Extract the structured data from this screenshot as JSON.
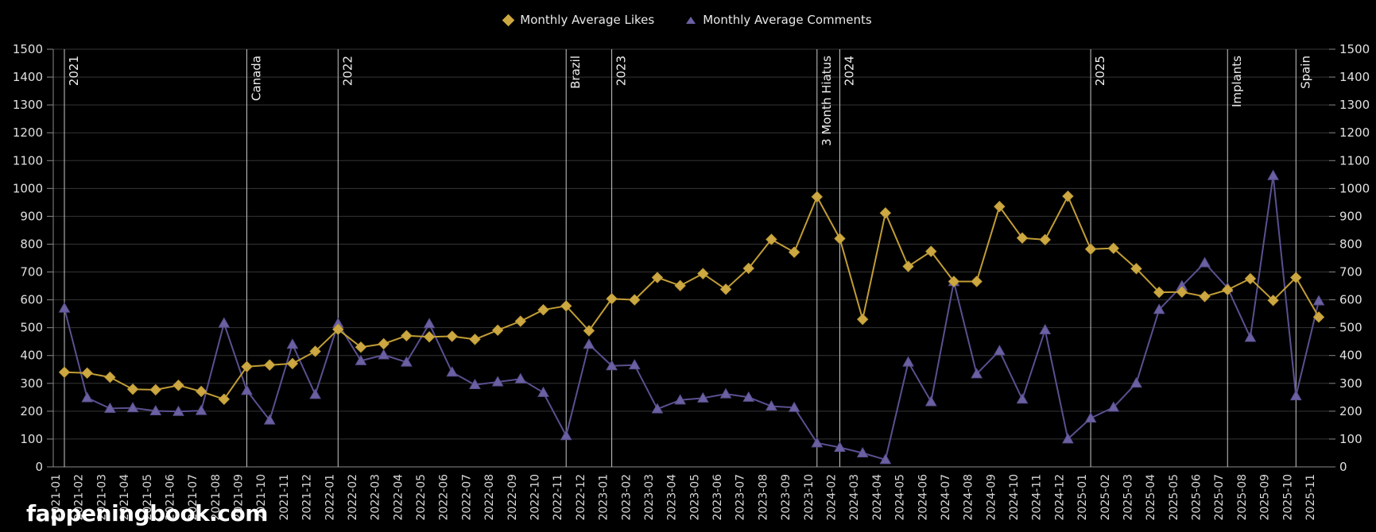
{
  "watermark": "fappeningbook.com",
  "colors": {
    "background": "#000000",
    "grid": "#343434",
    "axis": "#8a8a8a",
    "annotation_line": "#c8c8c8",
    "text": "#e0e0e0",
    "likes": "#c19d36",
    "likes_marker": "#cda842",
    "comments": "#5a5090",
    "comments_marker": "#6b60a2"
  },
  "legend": {
    "items": [
      {
        "label": "Monthly Average Likes",
        "marker": "diamond-icon"
      },
      {
        "label": "Monthly Average Comments",
        "marker": "triangle-icon"
      }
    ]
  },
  "chart_data": {
    "type": "line",
    "title": "",
    "xlabel": "",
    "ylabel": "",
    "ylim": [
      0,
      1500
    ],
    "ytick_step": 100,
    "grid": "horizontal",
    "legend_position": "top-center",
    "y_axis_sides": "both",
    "x_label_rotation": 90,
    "categories": [
      "2021-01",
      "2021-02",
      "2021-03",
      "2021-04",
      "2021-05",
      "2021-06",
      "2021-07",
      "2021-08",
      "2021-09",
      "2021-10",
      "2021-11",
      "2021-12",
      "2022-01",
      "2022-02",
      "2022-03",
      "2022-04",
      "2022-05",
      "2022-06",
      "2022-07",
      "2022-08",
      "2022-09",
      "2022-10",
      "2022-11",
      "2022-12",
      "2023-01",
      "2023-02",
      "2023-03",
      "2023-04",
      "2023-05",
      "2023-06",
      "2023-07",
      "2023-08",
      "2023-09",
      "2023-10",
      "2024-02",
      "2024-03",
      "2024-04",
      "2024-05",
      "2024-06",
      "2024-07",
      "2024-08",
      "2024-09",
      "2024-10",
      "2024-11",
      "2024-12",
      "2025-01",
      "2025-02",
      "2025-03",
      "2025-04",
      "2025-05",
      "2025-06",
      "2025-07",
      "2025-08",
      "2025-09",
      "2025-10",
      "2025-11"
    ],
    "series": [
      {
        "name": "Monthly Average Likes",
        "marker": "diamond",
        "values": [
          340,
          337,
          322,
          279,
          277,
          293,
          271,
          243,
          360,
          366,
          371,
          415,
          494,
          430,
          442,
          471,
          467,
          469,
          458,
          491,
          523,
          564,
          578,
          489,
          604,
          600,
          680,
          651,
          694,
          638,
          713,
          817,
          771,
          970,
          820,
          530,
          912,
          720,
          774,
          666,
          666,
          935,
          822,
          816,
          972,
          782,
          785,
          712,
          627,
          628,
          612,
          636,
          676,
          598,
          680,
          538
        ]
      },
      {
        "name": "Monthly Average Comments",
        "marker": "triangle",
        "values": [
          570,
          248,
          210,
          212,
          201,
          199,
          202,
          516,
          274,
          168,
          440,
          260,
          515,
          381,
          402,
          376,
          514,
          340,
          295,
          305,
          316,
          267,
          112,
          440,
          363,
          366,
          208,
          240,
          247,
          262,
          250,
          218,
          213,
          86,
          70,
          50,
          26,
          376,
          234,
          665,
          334,
          417,
          243,
          492,
          100,
          175,
          214,
          301,
          565,
          650,
          733,
          643,
          465,
          1046,
          255,
          596
        ]
      }
    ],
    "annotations": [
      {
        "label": "2021",
        "category": "2021-01"
      },
      {
        "label": "Canada",
        "category": "2021-09"
      },
      {
        "label": "2022",
        "category": "2022-01"
      },
      {
        "label": "Brazil",
        "category": "2022-11"
      },
      {
        "label": "2023",
        "category": "2023-01"
      },
      {
        "label": "3 Month Hiatus",
        "category": "2023-10"
      },
      {
        "label": "2024",
        "category": "2024-02"
      },
      {
        "label": "2025",
        "category": "2025-01"
      },
      {
        "label": "Implants",
        "category": "2025-07"
      },
      {
        "label": "Spain",
        "category": "2025-10"
      }
    ]
  }
}
